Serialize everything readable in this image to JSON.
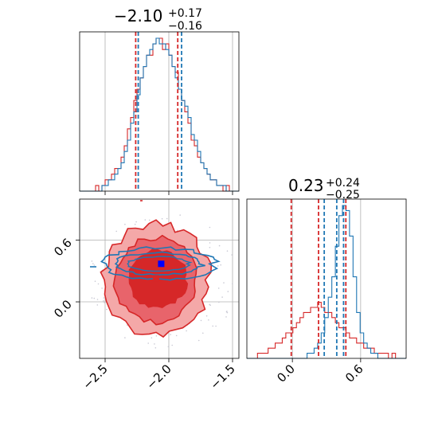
{
  "colors": {
    "red": "#d62728",
    "blue": "#1f77b4",
    "grid": "#b0b0b0",
    "axis": "#000000",
    "red_light": "#f4a8a8",
    "red_mid": "#e8646b"
  },
  "chart_data": [
    {
      "type": "histogram",
      "panel": "top-left",
      "title_main": "−2.10",
      "title_sup": "+0.17",
      "title_sub": "−0.16",
      "xlim": [
        -2.7,
        -1.45
      ],
      "grid": true,
      "series": [
        {
          "color": "#d62728",
          "bins": [
            -2.7,
            -1.45
          ],
          "counts": [
            0,
            0,
            0,
            0,
            0,
            1,
            0,
            1,
            2,
            2,
            3,
            4,
            4,
            6,
            8,
            11,
            13,
            16,
            18,
            20,
            22,
            24,
            24,
            26,
            27,
            27,
            25,
            26,
            24,
            22,
            21,
            18,
            16,
            14,
            12,
            9,
            8,
            6,
            5,
            4,
            3,
            2,
            2,
            1,
            1,
            0,
            1,
            0,
            0,
            0
          ],
          "quantiles": [
            -2.26,
            -2.1,
            -1.93
          ]
        },
        {
          "color": "#1f77b4",
          "bins": [
            -2.7,
            -1.45
          ],
          "counts": [
            0,
            0,
            0,
            0,
            0,
            0,
            0,
            1,
            1,
            2,
            2,
            3,
            4,
            5,
            7,
            9,
            12,
            14,
            17,
            20,
            22,
            24,
            25,
            26,
            27,
            26,
            26,
            25,
            24,
            22,
            20,
            18,
            16,
            15,
            13,
            10,
            9,
            7,
            5,
            4,
            3,
            2,
            2,
            1,
            1,
            1,
            0,
            0,
            0,
            0
          ],
          "quantiles": [
            -2.24,
            -2.1,
            -1.9
          ]
        }
      ]
    },
    {
      "type": "histogram",
      "panel": "bottom-right",
      "title_main": "0.23",
      "title_sup": "+0.24",
      "title_sub": "−0.25",
      "xlim": [
        -0.4,
        1.0
      ],
      "grid": true,
      "series": [
        {
          "color": "#d62728",
          "bins": [
            -0.4,
            1.0
          ],
          "counts": [
            0,
            0,
            0,
            1,
            1,
            1,
            2,
            2,
            3,
            3,
            4,
            5,
            5,
            6,
            7,
            8,
            9,
            9,
            10,
            10,
            11,
            10,
            9,
            9,
            8,
            7,
            6,
            6,
            5,
            4,
            4,
            3,
            3,
            2,
            2,
            2,
            1,
            1,
            1,
            1,
            0,
            1,
            0,
            0,
            0
          ],
          "quantiles": [
            -0.01,
            0.23,
            0.47
          ]
        },
        {
          "color": "#1f77b4",
          "bins": [
            -0.4,
            1.0
          ],
          "counts": [
            0,
            0,
            0,
            0,
            0,
            0,
            0,
            0,
            0,
            0,
            0,
            0,
            0,
            0,
            0,
            0,
            0,
            1,
            1,
            2,
            3,
            5,
            8,
            12,
            16,
            22,
            28,
            30,
            29,
            24,
            16,
            9,
            5,
            3,
            2,
            1,
            1,
            0,
            0,
            0,
            0,
            0,
            0,
            0,
            0
          ],
          "quantiles": [
            0.28,
            0.39,
            0.45
          ]
        }
      ]
    },
    {
      "type": "contour",
      "panel": "bottom-left",
      "xlim": [
        -2.7,
        -1.45
      ],
      "ylim": [
        -0.55,
        1.0
      ],
      "grid": true,
      "series": [
        {
          "color": "#d62728",
          "kind": "filled_contours",
          "center": [
            -2.1,
            0.23
          ],
          "levels": [
            "outer",
            "middle",
            "inner"
          ],
          "marker": [
            -2.1,
            0.23
          ]
        },
        {
          "color": "#1f77b4",
          "kind": "line_contours",
          "center": [
            -2.08,
            0.37
          ],
          "levels": [
            "outer",
            "middle",
            "inner"
          ],
          "marker": [
            -2.06,
            0.37
          ]
        }
      ]
    }
  ],
  "axes": {
    "bottom_left_x_ticks": [
      {
        "value": -2.5,
        "label": "−2.5"
      },
      {
        "value": -2.0,
        "label": "−2.0"
      },
      {
        "value": -1.5,
        "label": "−1.5"
      }
    ],
    "bottom_left_y_ticks": [
      {
        "value": 0.6,
        "label": "0.6"
      },
      {
        "value": 0.0,
        "label": "0.0"
      }
    ],
    "bottom_right_x_ticks": [
      {
        "value": 0.0,
        "label": "0.0"
      },
      {
        "value": 0.6,
        "label": "0.6"
      }
    ]
  }
}
